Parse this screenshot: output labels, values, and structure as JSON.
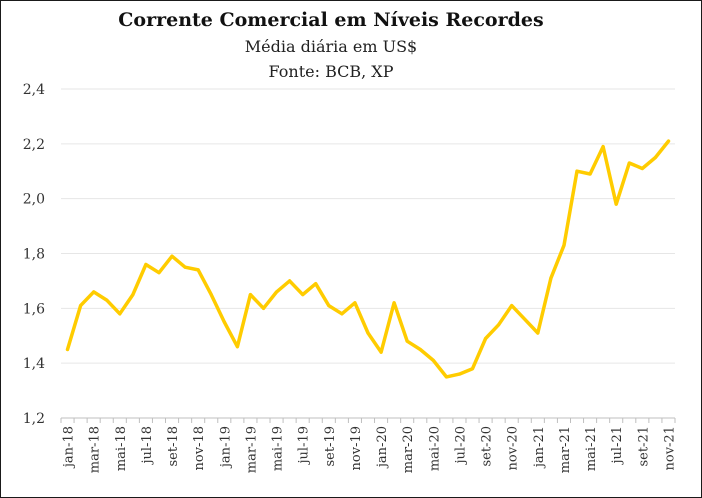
{
  "chart_data": {
    "type": "line",
    "title": "Corrente Comercial em Níveis Recordes",
    "subtitle": "Média diária em US$",
    "source": "Fonte: BCB, XP",
    "ylim": [
      1.2,
      2.4
    ],
    "yticks": [
      "1,2",
      "1,4",
      "1,6",
      "1,8",
      "2,0",
      "2,2",
      "2,4"
    ],
    "yticks_values": [
      1.2,
      1.4,
      1.6,
      1.8,
      2.0,
      2.2,
      2.4
    ],
    "xtick_labels": [
      "jan-18",
      "mar-18",
      "mai-18",
      "jul-18",
      "set-18",
      "nov-18",
      "jan-19",
      "mar-19",
      "mai-19",
      "jul-19",
      "set-19",
      "nov-19",
      "jan-20",
      "mar-20",
      "mai-20",
      "jul-20",
      "set-20",
      "nov-20",
      "jan-21",
      "mar-21",
      "mai-21",
      "jul-21",
      "set-21",
      "nov-21"
    ],
    "grid": true,
    "series_color": "#FFCC00",
    "series": [
      {
        "values": [
          1.45,
          1.61,
          1.66,
          1.63,
          1.58,
          1.65,
          1.76,
          1.73,
          1.79,
          1.75,
          1.74,
          1.65,
          1.55,
          1.46,
          1.65,
          1.6,
          1.66,
          1.7,
          1.65,
          1.69,
          1.61,
          1.58,
          1.62,
          1.51,
          1.44,
          1.62,
          1.48,
          1.45,
          1.41,
          1.35,
          1.36,
          1.38,
          1.49,
          1.54,
          1.61,
          1.56,
          1.51,
          1.71,
          1.83,
          2.1,
          2.09,
          2.19,
          1.98,
          2.13,
          2.11,
          2.15,
          2.21
        ]
      }
    ]
  }
}
